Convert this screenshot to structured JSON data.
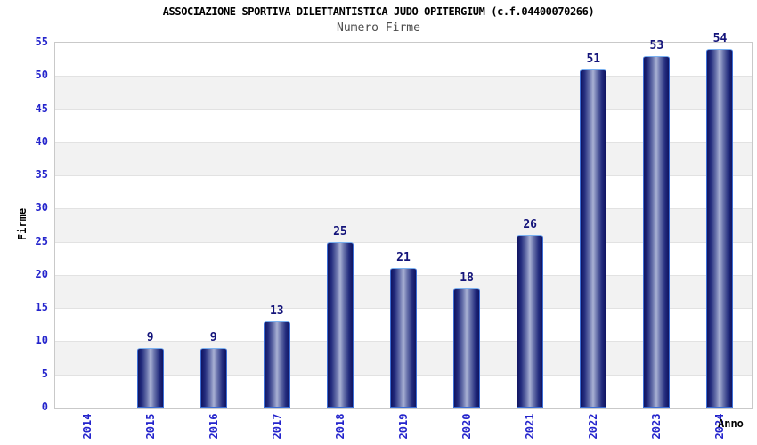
{
  "chart_data": {
    "type": "bar",
    "title": "ASSOCIAZIONE SPORTIVA DILETTANTISTICA JUDO OPITERGIUM (c.f.04400070266)",
    "subtitle": "Numero Firme",
    "xlabel": "Anno",
    "ylabel": "Firme",
    "categories": [
      "2014",
      "2015",
      "2016",
      "2017",
      "2018",
      "2019",
      "2020",
      "2021",
      "2022",
      "2023",
      "2024"
    ],
    "values": [
      0,
      9,
      9,
      13,
      25,
      21,
      18,
      26,
      51,
      53,
      54
    ],
    "ylim": [
      0,
      55
    ],
    "ytick_step": 5,
    "yticks": [
      0,
      5,
      10,
      15,
      20,
      25,
      30,
      35,
      40,
      45,
      50,
      55
    ],
    "legend_position": "none",
    "grid": "alternating horizontal bands, gridline each 5 units",
    "value_labels_shown_for_zero": false,
    "colors": {
      "tick_label": "#2424cc",
      "value_label": "#14147a",
      "title": "#000000",
      "subtitle": "#4a4a4a",
      "band_gray": "#f2f2f2",
      "band_white": "#ffffff",
      "gridline": "#e2e2e2",
      "plot_border": "#c9c9c9",
      "bar_border": "#3d6fd6",
      "bar_gradient": [
        "#101460",
        "#232c7e",
        "#6872ab",
        "#a9b1d4",
        "#6872ab",
        "#232c7e",
        "#101460"
      ]
    }
  }
}
